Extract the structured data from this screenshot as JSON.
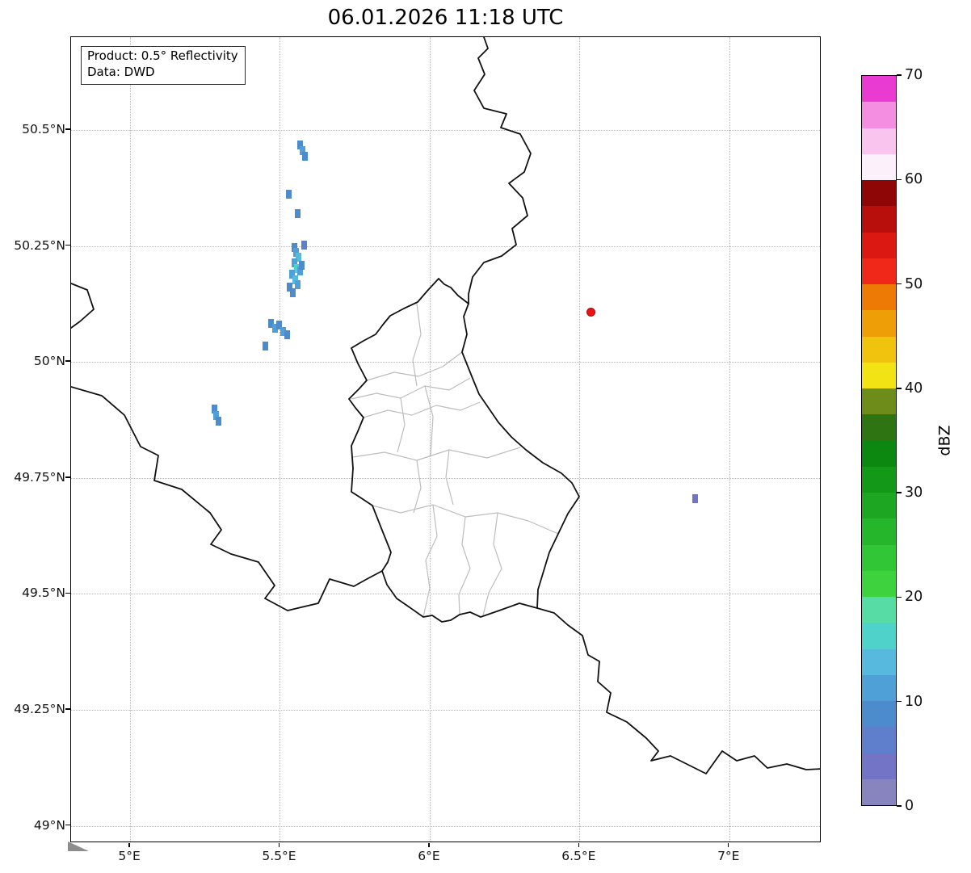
{
  "chart_data": {
    "type": "heatmap",
    "title": "06.01.2026 11:18 UTC",
    "annotation": [
      "Product: 0.5° Reflectivity",
      "Data: DWD"
    ],
    "xlabel": "",
    "ylabel": "",
    "grid": "dotted",
    "extent": {
      "lon_min": 4.803,
      "lon_max": 7.308,
      "lat_min": 48.963,
      "lat_max": 50.7
    },
    "x_ticks": [
      {
        "lon": 5.0,
        "label": "5°E"
      },
      {
        "lon": 5.5,
        "label": "5.5°E"
      },
      {
        "lon": 6.0,
        "label": "6°E"
      },
      {
        "lon": 6.5,
        "label": "6.5°E"
      },
      {
        "lon": 7.0,
        "label": "7°E"
      }
    ],
    "y_ticks": [
      {
        "lat": 50.5,
        "label": "50.5°N"
      },
      {
        "lat": 50.25,
        "label": "50.25°N"
      },
      {
        "lat": 50.0,
        "label": "50°N"
      },
      {
        "lat": 49.75,
        "label": "49.75°N"
      },
      {
        "lat": 49.5,
        "label": "49.5°N"
      },
      {
        "lat": 49.25,
        "label": "49.25°N"
      },
      {
        "lat": 49.0,
        "label": "49°N"
      }
    ],
    "colorbar": {
      "label": "dBZ",
      "min": 0,
      "max": 70,
      "ticks": [
        0,
        10,
        20,
        30,
        40,
        50,
        60,
        70
      ],
      "segment_size": 2.5,
      "colors": [
        "#8884BE",
        "#7374C6",
        "#5F7FCC",
        "#4D8CCC",
        "#4FA0D6",
        "#57B9DE",
        "#4FD2CA",
        "#58DCA6",
        "#3ED23E",
        "#30C636",
        "#26B62C",
        "#1CA622",
        "#139818",
        "#0C8810",
        "#2E7412",
        "#6E8C1A",
        "#F2E414",
        "#F0C40E",
        "#EE9F08",
        "#EC7A04",
        "#F0281A",
        "#DC1812",
        "#B80E0C",
        "#8E0606",
        "#FCF0FA",
        "#F9C4EE",
        "#F48EE0",
        "#E93BD2"
      ]
    },
    "radar_site": {
      "lon": 6.539,
      "lat": 50.108,
      "color": "#ee1111"
    },
    "echoes": [
      {
        "lon": 5.568,
        "lat": 50.468,
        "dbz": 9
      },
      {
        "lon": 5.576,
        "lat": 50.455,
        "dbz": 11
      },
      {
        "lon": 5.583,
        "lat": 50.443,
        "dbz": 9
      },
      {
        "lon": 5.531,
        "lat": 50.362,
        "dbz": 8
      },
      {
        "lon": 5.56,
        "lat": 50.32,
        "dbz": 8
      },
      {
        "lon": 5.58,
        "lat": 50.252,
        "dbz": 7
      },
      {
        "lon": 5.548,
        "lat": 50.246,
        "dbz": 9
      },
      {
        "lon": 5.553,
        "lat": 50.236,
        "dbz": 12
      },
      {
        "lon": 5.561,
        "lat": 50.225,
        "dbz": 14
      },
      {
        "lon": 5.549,
        "lat": 50.214,
        "dbz": 12
      },
      {
        "lon": 5.557,
        "lat": 50.202,
        "dbz": 15
      },
      {
        "lon": 5.567,
        "lat": 50.197,
        "dbz": 10
      },
      {
        "lon": 5.572,
        "lat": 50.209,
        "dbz": 8
      },
      {
        "lon": 5.541,
        "lat": 50.189,
        "dbz": 12
      },
      {
        "lon": 5.551,
        "lat": 50.177,
        "dbz": 13
      },
      {
        "lon": 5.559,
        "lat": 50.166,
        "dbz": 10
      },
      {
        "lon": 5.533,
        "lat": 50.161,
        "dbz": 8
      },
      {
        "lon": 5.543,
        "lat": 50.15,
        "dbz": 9
      },
      {
        "lon": 5.47,
        "lat": 50.083,
        "dbz": 9
      },
      {
        "lon": 5.483,
        "lat": 50.073,
        "dbz": 11
      },
      {
        "lon": 5.496,
        "lat": 50.079,
        "dbz": 8
      },
      {
        "lon": 5.511,
        "lat": 50.066,
        "dbz": 10
      },
      {
        "lon": 5.525,
        "lat": 50.058,
        "dbz": 8
      },
      {
        "lon": 5.452,
        "lat": 50.035,
        "dbz": 8
      },
      {
        "lon": 5.282,
        "lat": 49.898,
        "dbz": 9
      },
      {
        "lon": 5.288,
        "lat": 49.884,
        "dbz": 11
      },
      {
        "lon": 5.295,
        "lat": 49.872,
        "dbz": 8
      },
      {
        "lon": 6.885,
        "lat": 49.705,
        "dbz": 4
      }
    ]
  }
}
